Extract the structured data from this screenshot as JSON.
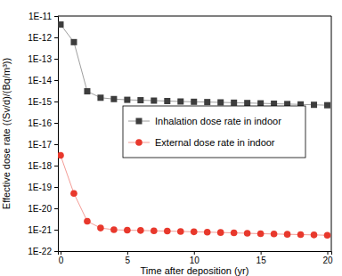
{
  "chart_data": {
    "type": "line",
    "x_label": "Time after deposition (yr)",
    "y_label": "Effective dose rate ((Sv/d)/(Bq/m³))",
    "x": [
      0,
      1,
      2,
      3,
      4,
      5,
      6,
      7,
      8,
      9,
      10,
      11,
      12,
      13,
      14,
      15,
      16,
      17,
      18,
      19,
      20
    ],
    "series": [
      {
        "name": "Inhalation dose rate in indoor",
        "color": "#3d3d3d",
        "marker": "square",
        "line_style": "solid",
        "values": [
          4e-12,
          6e-13,
          3e-15,
          1.5e-15,
          1.3e-15,
          1.2e-15,
          1.15e-15,
          1.1e-15,
          1.05e-15,
          1e-15,
          9.7e-16,
          9.4e-16,
          9.1e-16,
          8.8e-16,
          8.5e-16,
          8.2e-16,
          7.9e-16,
          7.6e-16,
          7.3e-16,
          7e-16,
          6.7e-16
        ]
      },
      {
        "name": "External dose rate in indoor",
        "color": "#e8382c",
        "marker": "circle",
        "line_style": "solid",
        "values": [
          3e-18,
          5e-20,
          2.5e-21,
          1.2e-21,
          1e-21,
          9.5e-22,
          9.2e-22,
          8.9e-22,
          8.6e-22,
          8.3e-22,
          8e-22,
          7.7e-22,
          7.4e-22,
          7.1e-22,
          6.8e-22,
          6.5e-22,
          6.3e-22,
          6.1e-22,
          5.9e-22,
          5.7e-22,
          5.5e-22
        ]
      }
    ],
    "xlim": [
      -0.2,
      20.3
    ],
    "xticks": [
      0,
      5,
      10,
      15,
      20
    ],
    "ylim": [
      1e-22,
      1e-11
    ],
    "yticks": [
      {
        "value": 1e-22,
        "label": "1E-22"
      },
      {
        "value": 1e-21,
        "label": "1E-21"
      },
      {
        "value": 1e-20,
        "label": "1E-20"
      },
      {
        "value": 1e-19,
        "label": "1E-19"
      },
      {
        "value": 1e-18,
        "label": "1E-18"
      },
      {
        "value": 1e-17,
        "label": "1E-17"
      },
      {
        "value": 1e-16,
        "label": "1E-16"
      },
      {
        "value": 1e-15,
        "label": "1E-15"
      },
      {
        "value": 1e-14,
        "label": "1E-14"
      },
      {
        "value": 1e-13,
        "label": "1E-13"
      },
      {
        "value": 1e-12,
        "label": "1E-12"
      },
      {
        "value": 1e-11,
        "label": "1E-11"
      }
    ],
    "log": "y",
    "grid": false,
    "legend": "center"
  }
}
